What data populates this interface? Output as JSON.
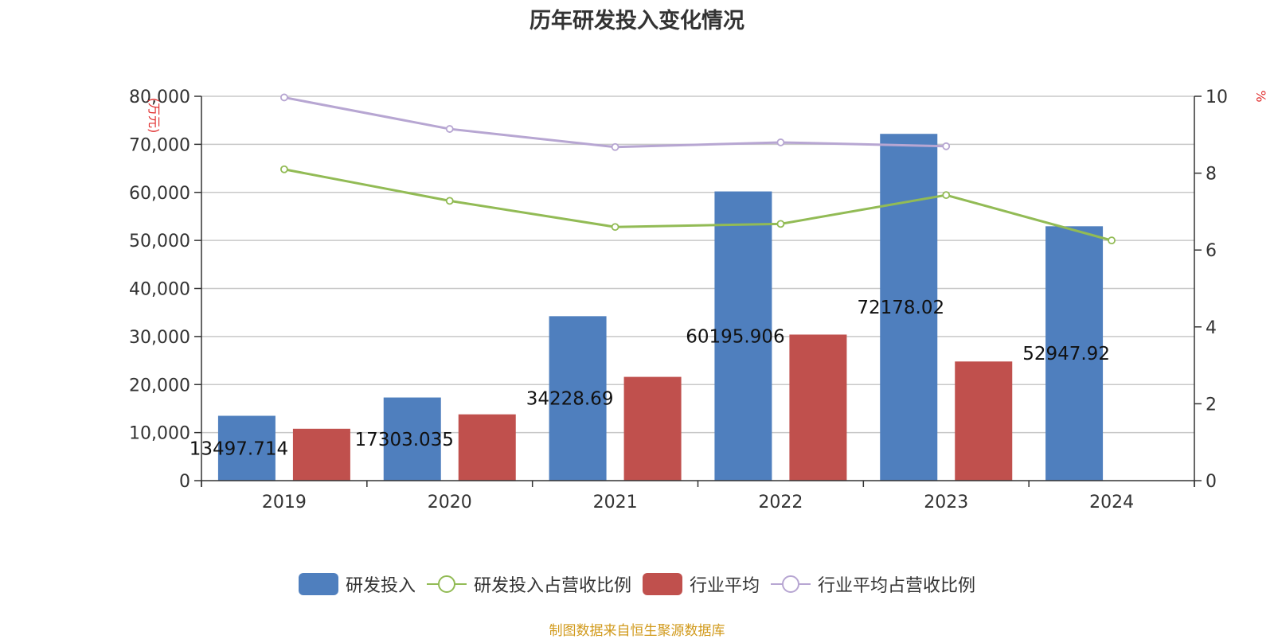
{
  "chart_data": {
    "type": "bar+line",
    "title": "历年研发投入变化情况",
    "categories": [
      "2019",
      "2020",
      "2021",
      "2022",
      "2023",
      "2024"
    ],
    "y_left": {
      "label": "(万元)",
      "min": 0,
      "max": 80000,
      "ticks": [
        "0",
        "10,000",
        "20,000",
        "30,000",
        "40,000",
        "50,000",
        "60,000",
        "70,000",
        "80,000"
      ]
    },
    "y_right": {
      "label": "%",
      "min": 0,
      "max": 10,
      "ticks": [
        "0",
        "2",
        "4",
        "6",
        "8",
        "10"
      ]
    },
    "series": [
      {
        "name": "研发投入",
        "type": "bar",
        "axis": "left",
        "color": "#4f7fbe",
        "values": [
          13497.714,
          17303.035,
          34228.69,
          60195.906,
          72178.02,
          52947.92
        ],
        "labels": [
          "13497.714",
          "17303.035",
          "34228.69",
          "60195.906",
          "72178.02",
          "52947.92"
        ]
      },
      {
        "name": "研发投入占营收比例",
        "type": "line",
        "axis": "right",
        "color": "#92bb55",
        "values": [
          8.1,
          7.28,
          6.6,
          6.68,
          7.43,
          6.25
        ]
      },
      {
        "name": "行业平均",
        "type": "bar",
        "axis": "left",
        "color": "#c0504d",
        "values": [
          10800,
          13800,
          21600,
          30400,
          24800,
          null
        ]
      },
      {
        "name": "行业平均占营收比例",
        "type": "line",
        "axis": "right",
        "color": "#b7a6d2",
        "values": [
          9.97,
          9.15,
          8.68,
          8.8,
          8.7,
          null
        ]
      }
    ],
    "legend_position": "bottom-center",
    "grid": true
  },
  "source_note": "制图数据来自恒生聚源数据库"
}
